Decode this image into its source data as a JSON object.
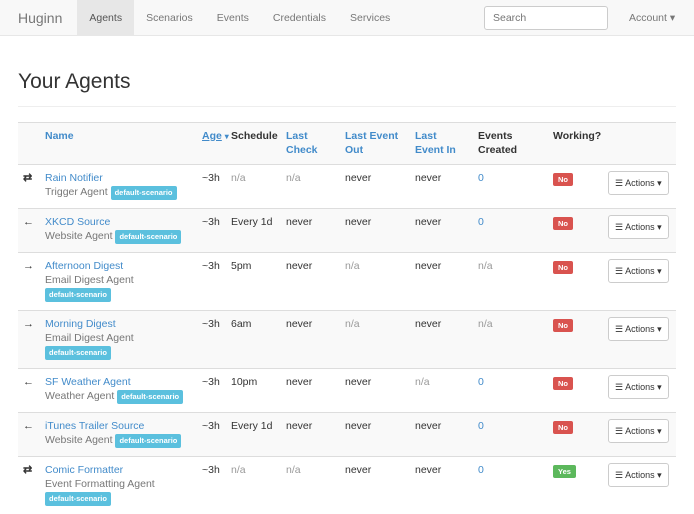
{
  "nav": {
    "brand": "Huginn",
    "items": [
      "Agents",
      "Scenarios",
      "Events",
      "Credentials",
      "Services"
    ],
    "active": "Agents",
    "search_placeholder": "Search",
    "account": "Account ▾"
  },
  "page_title": "Your Agents",
  "columns": {
    "name": "Name",
    "age": "Age",
    "sort_indicator": "▾",
    "schedule": "Schedule",
    "last_check": "Last Check",
    "last_event_out": "Last Event Out",
    "last_event_in": "Last Event In",
    "events_created": "Events Created",
    "working": "Working?"
  },
  "actions_label": "Actions",
  "agents": [
    {
      "icon": "⇄",
      "name": "Rain Notifier",
      "type": "Trigger Agent",
      "scenario": "default-scenario",
      "age": "~3h",
      "schedule": "n/a",
      "last_check": "n/a",
      "last_event_out": "never",
      "last_event_in": "never",
      "events_created": "0",
      "working": "No"
    },
    {
      "icon": "←",
      "name": "XKCD Source",
      "type": "Website Agent",
      "scenario": "default-scenario",
      "age": "~3h",
      "schedule": "Every 1d",
      "last_check": "never",
      "last_event_out": "never",
      "last_event_in": "never",
      "events_created": "0",
      "working": "No"
    },
    {
      "icon": "→",
      "name": "Afternoon Digest",
      "type": "Email Digest Agent",
      "scenario": "default-scenario",
      "age": "~3h",
      "schedule": "5pm",
      "last_check": "never",
      "last_event_out": "n/a",
      "last_event_in": "never",
      "events_created": "n/a",
      "working": "No"
    },
    {
      "icon": "→",
      "name": "Morning Digest",
      "type": "Email Digest Agent",
      "scenario": "default-scenario",
      "age": "~3h",
      "schedule": "6am",
      "last_check": "never",
      "last_event_out": "n/a",
      "last_event_in": "never",
      "events_created": "n/a",
      "working": "No"
    },
    {
      "icon": "←",
      "name": "SF Weather Agent",
      "type": "Weather Agent",
      "scenario": "default-scenario",
      "age": "~3h",
      "schedule": "10pm",
      "last_check": "never",
      "last_event_out": "never",
      "last_event_in": "n/a",
      "events_created": "0",
      "working": "No"
    },
    {
      "icon": "←",
      "name": "iTunes Trailer Source",
      "type": "Website Agent",
      "scenario": "default-scenario",
      "age": "~3h",
      "schedule": "Every 1d",
      "last_check": "never",
      "last_event_out": "never",
      "last_event_in": "never",
      "events_created": "0",
      "working": "No"
    },
    {
      "icon": "⇄",
      "name": "Comic Formatter",
      "type": "Event Formatting Agent",
      "scenario": "default-scenario",
      "age": "~3h",
      "schedule": "n/a",
      "last_check": "n/a",
      "last_event_out": "never",
      "last_event_in": "never",
      "events_created": "0",
      "working": "Yes"
    }
  ]
}
